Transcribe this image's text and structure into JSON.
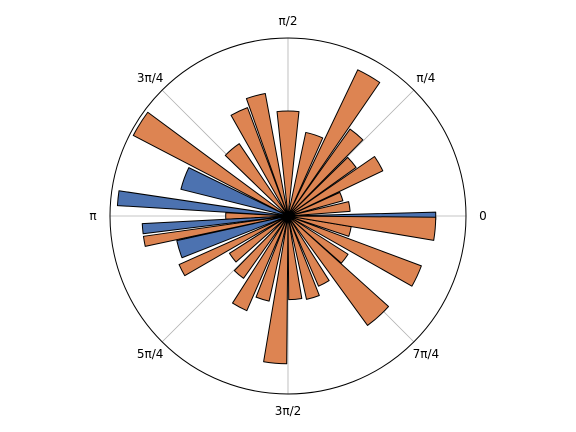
{
  "chart_data": {
    "type": "bar",
    "coordinate_system": "polar",
    "angle_unit": "radians",
    "theta_tick_labels": [
      "0",
      "π/4",
      "π/2",
      "3π/4",
      "π",
      "5π/4",
      "3π/2",
      "7π/4"
    ],
    "theta_ticks": [
      0,
      0.7854,
      1.5708,
      2.3562,
      3.1416,
      3.927,
      4.7124,
      5.4978
    ],
    "rlim": [
      0,
      1.0
    ],
    "radial_tick_labels_shown": false,
    "grid": true,
    "legend": "none",
    "bar_edge_color": "#000000",
    "colors": {
      "highlight": "#4c72b0",
      "default": "#dd8452"
    },
    "bars": [
      {
        "theta": 0.0,
        "width": 0.0524,
        "r": 0.83,
        "color": "highlight"
      },
      {
        "theta": 0.1536,
        "width": 0.1571,
        "r": 0.35,
        "color": "default"
      },
      {
        "theta": 0.3491,
        "width": 0.1571,
        "r": 0.32,
        "color": "default"
      },
      {
        "theta": 0.5236,
        "width": 0.1571,
        "r": 0.59,
        "color": "default"
      },
      {
        "theta": 0.6981,
        "width": 0.1571,
        "r": 0.47,
        "color": "default"
      },
      {
        "theta": 0.8727,
        "width": 0.1571,
        "r": 0.6,
        "color": "default"
      },
      {
        "theta": 1.0472,
        "width": 0.1571,
        "r": 0.91,
        "color": "default"
      },
      {
        "theta": 1.2566,
        "width": 0.2094,
        "r": 0.48,
        "color": "default"
      },
      {
        "theta": 1.5708,
        "width": 0.2094,
        "r": 0.59,
        "color": "default"
      },
      {
        "theta": 1.8326,
        "width": 0.1571,
        "r": 0.7,
        "color": "default"
      },
      {
        "theta": 2.0071,
        "width": 0.1571,
        "r": 0.65,
        "color": "default"
      },
      {
        "theta": 2.2689,
        "width": 0.2094,
        "r": 0.49,
        "color": "default"
      },
      {
        "theta": 2.5831,
        "width": 0.1571,
        "r": 0.98,
        "color": "default"
      },
      {
        "theta": 2.7925,
        "width": 0.2094,
        "r": 0.62,
        "color": "highlight"
      },
      {
        "theta": 3.0369,
        "width": 0.0873,
        "r": 0.96,
        "color": "highlight"
      },
      {
        "theta": 3.1416,
        "width": 0.1047,
        "r": 0.35,
        "color": "default"
      },
      {
        "theta": 3.2289,
        "width": 0.0698,
        "r": 0.82,
        "color": "highlight"
      },
      {
        "theta": 3.3161,
        "width": 0.0698,
        "r": 0.82,
        "color": "default"
      },
      {
        "theta": 3.4383,
        "width": 0.1571,
        "r": 0.64,
        "color": "highlight"
      },
      {
        "theta": 3.6129,
        "width": 0.1047,
        "r": 0.67,
        "color": "default"
      },
      {
        "theta": 3.7873,
        "width": 0.1571,
        "r": 0.39,
        "color": "default"
      },
      {
        "theta": 4.0142,
        "width": 0.1571,
        "r": 0.43,
        "color": "default"
      },
      {
        "theta": 4.2237,
        "width": 0.1571,
        "r": 0.58,
        "color": "default"
      },
      {
        "theta": 4.4156,
        "width": 0.1571,
        "r": 0.49,
        "color": "default"
      },
      {
        "theta": 4.6251,
        "width": 0.1571,
        "r": 0.83,
        "color": "default"
      },
      {
        "theta": 4.7997,
        "width": 0.1571,
        "r": 0.47,
        "color": "default"
      },
      {
        "theta": 5.0091,
        "width": 0.1571,
        "r": 0.48,
        "color": "default"
      },
      {
        "theta": 5.2011,
        "width": 0.1571,
        "r": 0.43,
        "color": "default"
      },
      {
        "theta": 5.4455,
        "width": 0.2094,
        "r": 0.76,
        "color": "default"
      },
      {
        "theta": 5.6374,
        "width": 0.1571,
        "r": 0.4,
        "color": "default"
      },
      {
        "theta": 5.8468,
        "width": 0.1571,
        "r": 0.8,
        "color": "default"
      },
      {
        "theta": 6.0388,
        "width": 0.1571,
        "r": 0.36,
        "color": "default"
      },
      {
        "theta": 6.1959,
        "width": 0.1571,
        "r": 0.83,
        "color": "default"
      }
    ]
  }
}
